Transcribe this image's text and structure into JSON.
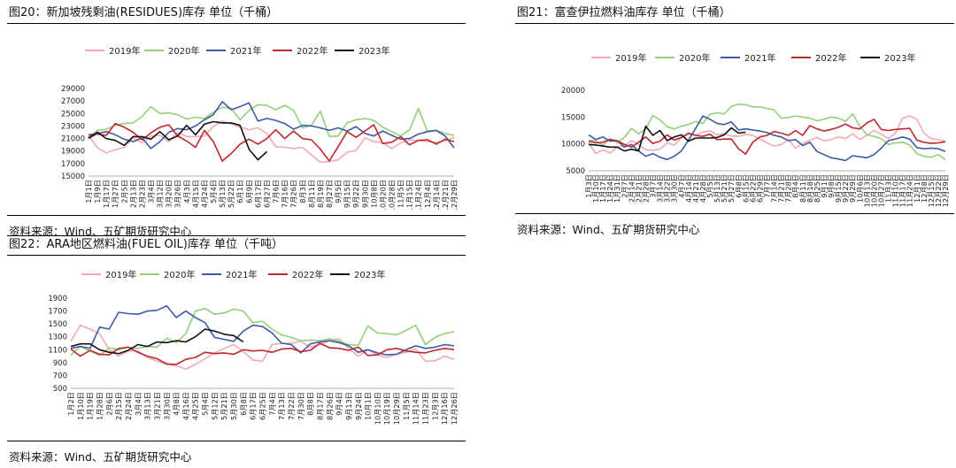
{
  "panels": [
    {
      "title": "图20：新加坡残剩油(RESIDUES)库存 单位（千桶）",
      "source": "资料来源：Wind、五矿期货研究中心"
    },
    {
      "title": "图21：富查伊拉燃料油库存 单位（千桶）",
      "source": "资料来源：Wind、五矿期货研究中心"
    },
    {
      "title": "图22：ARA地区燃料油(FUEL OIL)库存 单位（千吨）",
      "source": "资料来源：Wind、五矿期货研究中心"
    }
  ],
  "chart_data": [
    {
      "type": "line",
      "ylim": [
        15000,
        29000
      ],
      "yticks": [
        15000,
        17000,
        19000,
        21000,
        23000,
        25000,
        27000,
        29000
      ],
      "categories": [
        "1月1日",
        "1月9日",
        "1月17日",
        "1月27日",
        "2月5日",
        "2月13日",
        "2月23日",
        "3月4日",
        "3月12日",
        "3月20日",
        "3月26日",
        "4月3日",
        "4月15日",
        "4月24日",
        "5月4日",
        "5月13日",
        "5月22日",
        "6月1日",
        "6月9日",
        "6月17日",
        "6月27日",
        "7月6日",
        "7月16日",
        "7月26日",
        "8月3日",
        "8月11日",
        "8月19日",
        "8月27日",
        "9月5日",
        "9月15日",
        "9月22日",
        "9月30日",
        "10月8日",
        "10月20日",
        "10月28日",
        "11月5日",
        "11月15日",
        "11月24日",
        "12月4日",
        "12月14日",
        "12月21日",
        "12月29日"
      ],
      "series": [
        {
          "name": "2019年",
          "color": "#f4a9b6",
          "values": [
            21500,
            19500,
            18700,
            19200,
            19600,
            21100,
            20300,
            21400,
            21500,
            20500,
            22000,
            21300,
            21300,
            21400,
            22900,
            23800,
            23300,
            22800,
            22400,
            22700,
            21800,
            19700,
            19600,
            19400,
            19600,
            18400,
            17200,
            17300,
            17600,
            18800,
            19100,
            21100,
            20500,
            20300,
            19400,
            20300,
            20800,
            20700,
            20500,
            20400,
            20600,
            21200
          ]
        },
        {
          "name": "2020年",
          "color": "#92d07a",
          "values": [
            21100,
            22300,
            22500,
            23100,
            23400,
            23500,
            24500,
            26100,
            25000,
            25100,
            24800,
            24100,
            24400,
            24200,
            25200,
            26000,
            25800,
            24000,
            25500,
            26400,
            26300,
            25600,
            26300,
            25500,
            22700,
            23100,
            25400,
            21300,
            21400,
            23500,
            24000,
            24200,
            23900,
            22800,
            22100,
            21400,
            22400,
            25800,
            22200,
            22300,
            21800,
            21500
          ]
        },
        {
          "name": "2021年",
          "color": "#3d5aa6",
          "values": [
            21000,
            21800,
            22100,
            21600,
            20900,
            20500,
            21100,
            19400,
            20500,
            22000,
            22600,
            22400,
            23000,
            24000,
            24800,
            26900,
            25600,
            26100,
            26700,
            23800,
            24200,
            23900,
            23400,
            22500,
            23100,
            23000,
            22700,
            22300,
            22700,
            22200,
            22900,
            21800,
            21400,
            22200,
            21500,
            20900,
            21000,
            21700,
            22100,
            22300,
            21400,
            19500
          ]
        },
        {
          "name": "2022年",
          "color": "#c0272d",
          "values": [
            21600,
            21700,
            21500,
            23400,
            22800,
            22000,
            20800,
            21900,
            22800,
            23200,
            21400,
            20600,
            19600,
            22300,
            20500,
            17400,
            18600,
            20100,
            20900,
            20100,
            21000,
            22400,
            21000,
            22200,
            21000,
            20800,
            19300,
            17400,
            19700,
            22100,
            21200,
            22200,
            23200,
            20200,
            20400,
            21300,
            20000,
            20700,
            20800,
            20100,
            20900,
            20500
          ]
        },
        {
          "name": "2023年",
          "color": "#111111",
          "values": [
            21100,
            22000,
            21000,
            20700,
            19900,
            21300,
            21300,
            20900,
            22100,
            20800,
            21400,
            23100,
            21600,
            23300,
            23700,
            23500,
            23500,
            23100,
            19300,
            17600,
            18900,
            null,
            null,
            null,
            null,
            null,
            null,
            null,
            null,
            null,
            null,
            null,
            null,
            null,
            null,
            null,
            null,
            null,
            null,
            null,
            null,
            null
          ]
        }
      ]
    },
    {
      "type": "line",
      "ylim": [
        5000,
        20000
      ],
      "yticks": [
        5000,
        10000,
        15000,
        20000
      ],
      "categories": [
        "1月3日",
        "1月10日",
        "1月17日",
        "1月24日",
        "1月31日",
        "2月7日",
        "2月14日",
        "2月21日",
        "2月28日",
        "3月7日",
        "3月14日",
        "3月22日",
        "3月30日",
        "4月7日",
        "4月14日",
        "4月21日",
        "4月28日",
        "5月5日",
        "5月13日",
        "5月21日",
        "5月27日",
        "6月8日",
        "6月15日",
        "6月22日",
        "6月29日",
        "7月7日",
        "7月14日",
        "7月21日",
        "7月28日",
        "8月4日",
        "8月11日",
        "8月18日",
        "8月25日",
        "9月1日",
        "9月8日",
        "9月15日",
        "9月22日",
        "9月29日",
        "10月6日",
        "10月13日",
        "10月20日",
        "10月27日",
        "11月3日",
        "11月10日",
        "11月17日",
        "11月24日",
        "12月1日",
        "12月8日",
        "12月15日",
        "12月22日",
        "12月29日"
      ],
      "series": [
        {
          "name": "2019年",
          "color": "#f4a9b6",
          "values": [
            10200,
            8200,
            8900,
            8300,
            9400,
            9700,
            10600,
            9900,
            8900,
            8800,
            9000,
            10200,
            9800,
            11200,
            11800,
            11600,
            12200,
            12400,
            11700,
            11900,
            11500,
            11400,
            11800,
            11600,
            10900,
            10200,
            9600,
            9900,
            10800,
            9200,
            10100,
            10700,
            11200,
            10600,
            10800,
            11300,
            11000,
            11900,
            10800,
            11600,
            12500,
            11800,
            11000,
            12000,
            14800,
            15200,
            14600,
            12000,
            11000,
            10800,
            10500
          ]
        },
        {
          "name": "2020年",
          "color": "#92d07a",
          "values": [
            10700,
            10500,
            9800,
            11000,
            10200,
            11200,
            12900,
            11900,
            12800,
            15300,
            14500,
            13200,
            12800,
            13300,
            13600,
            14200,
            13800,
            15500,
            15800,
            15600,
            17000,
            17400,
            17300,
            16900,
            16900,
            16600,
            16300,
            14800,
            14900,
            15200,
            15000,
            14800,
            14300,
            14600,
            15000,
            14800,
            14200,
            15600,
            13300,
            11700,
            11400,
            11000,
            9900,
            10200,
            10300,
            9800,
            8200,
            7700,
            7500,
            8000,
            7100
          ]
        },
        {
          "name": "2021年",
          "color": "#3d5aa6",
          "values": [
            11700,
            10800,
            11300,
            10500,
            10600,
            9400,
            9900,
            8700,
            7700,
            8200,
            7500,
            7100,
            7700,
            8700,
            10700,
            12900,
            15200,
            14600,
            13800,
            13600,
            14100,
            12600,
            12800,
            12600,
            12400,
            12100,
            11600,
            11300,
            10600,
            10800,
            9700,
            10300,
            8600,
            8000,
            7400,
            7200,
            6900,
            7800,
            7600,
            7400,
            8000,
            9200,
            10600,
            10900,
            11300,
            10900,
            9300,
            9100,
            9200,
            9100,
            8600
          ]
        },
        {
          "name": "2022年",
          "color": "#c0272d",
          "values": [
            10500,
            10200,
            10300,
            10800,
            10600,
            9900,
            9400,
            10300,
            11300,
            10100,
            10500,
            11700,
            10700,
            11200,
            12000,
            11600,
            11400,
            11800,
            10800,
            10900,
            10900,
            9100,
            8100,
            10300,
            11300,
            11600,
            12300,
            12000,
            11600,
            12500,
            11600,
            13400,
            12800,
            12400,
            12700,
            13100,
            13700,
            13000,
            12800,
            13900,
            14600,
            12700,
            12500,
            12700,
            12800,
            12900,
            10700,
            10300,
            10100,
            10200,
            10400
          ]
        },
        {
          "name": "2023年",
          "color": "#111111",
          "values": [
            9900,
            9800,
            9600,
            9400,
            9400,
            8700,
            9000,
            8700,
            13300,
            11600,
            12500,
            10600,
            11300,
            11700,
            10500,
            11100,
            11100,
            11100,
            11200,
            11700,
            13000,
            12000,
            12200,
            null,
            null,
            null,
            null,
            null,
            null,
            null,
            null,
            null,
            null,
            null,
            null,
            null,
            null,
            null,
            null,
            null,
            null,
            null,
            null,
            null,
            null,
            null,
            null,
            null,
            null,
            null,
            null
          ]
        }
      ]
    },
    {
      "type": "line",
      "ylim": [
        500,
        1900
      ],
      "yticks": [
        500,
        700,
        900,
        1100,
        1300,
        1500,
        1700,
        1900
      ],
      "categories": [
        "1月2日",
        "1月10日",
        "1月19日",
        "1月28日",
        "2月6日",
        "2月15日",
        "2月24日",
        "3月4日",
        "3月13日",
        "3月21日",
        "3月30日",
        "4月8日",
        "4月16日",
        "4月25日",
        "5月4日",
        "5月12日",
        "5月21日",
        "5月30日",
        "6月8日",
        "6月17日",
        "6月25日",
        "7月4日",
        "7月13日",
        "7月22日",
        "7月30日",
        "8月8日",
        "8月17日",
        "8月26日",
        "9月4日",
        "9月13日",
        "9月24日",
        "10月1日",
        "10月10日",
        "10月19日",
        "10月29日",
        "11月5日",
        "11月14日",
        "11月23日",
        "12月3日",
        "12月16日",
        "12月26日"
      ],
      "series": [
        {
          "name": "2019年",
          "color": "#f4a9b6",
          "values": [
            1230,
            1480,
            1420,
            1350,
            1100,
            1000,
            1080,
            1080,
            980,
            920,
            870,
            850,
            800,
            870,
            960,
            1050,
            1120,
            1180,
            1070,
            940,
            920,
            1180,
            1200,
            1200,
            1230,
            1140,
            1180,
            1240,
            1270,
            1120,
            1000,
            1100,
            1020,
            980,
            1030,
            1060,
            1110,
            920,
            930,
            1000,
            950
          ]
        },
        {
          "name": "2020年",
          "color": "#92d07a",
          "values": [
            1010,
            1150,
            1080,
            1010,
            1130,
            1100,
            1140,
            1120,
            1150,
            1140,
            1280,
            1210,
            1350,
            1700,
            1740,
            1650,
            1670,
            1730,
            1700,
            1520,
            1540,
            1420,
            1330,
            1290,
            1240,
            1250,
            1240,
            1270,
            1230,
            1180,
            1170,
            1470,
            1360,
            1350,
            1330,
            1400,
            1480,
            1180,
            1290,
            1350,
            1380
          ]
        },
        {
          "name": "2021年",
          "color": "#3d5aa6",
          "values": [
            1120,
            1150,
            1120,
            1450,
            1420,
            1680,
            1660,
            1650,
            1700,
            1710,
            1780,
            1600,
            1700,
            1600,
            1520,
            1290,
            1260,
            1230,
            1390,
            1480,
            1460,
            1360,
            1200,
            1180,
            1050,
            1190,
            1220,
            1240,
            1210,
            1160,
            1060,
            1100,
            1050,
            1020,
            1030,
            1100,
            1160,
            1120,
            1140,
            1180,
            1160
          ]
        },
        {
          "name": "2022年",
          "color": "#c0272d",
          "values": [
            1110,
            1000,
            1090,
            1030,
            1020,
            1120,
            1140,
            1060,
            1000,
            960,
            880,
            870,
            950,
            980,
            1060,
            1040,
            1050,
            1030,
            1100,
            1080,
            1090,
            1060,
            1110,
            1120,
            1070,
            1090,
            1200,
            1130,
            1120,
            1090,
            1140,
            1010,
            1020,
            1100,
            1120,
            1080,
            1060,
            1050,
            1090,
            1120,
            1100
          ]
        },
        {
          "name": "2023年",
          "color": "#111111",
          "values": [
            1150,
            1190,
            1190,
            1100,
            1060,
            1040,
            1090,
            1180,
            1150,
            1220,
            1210,
            1240,
            1220,
            1300,
            1420,
            1390,
            1340,
            1320,
            1220,
            null,
            null,
            null,
            null,
            null,
            null,
            null,
            null,
            null,
            null,
            null,
            null,
            null,
            null,
            null,
            null,
            null,
            null,
            null,
            null,
            null,
            null
          ]
        }
      ]
    }
  ]
}
